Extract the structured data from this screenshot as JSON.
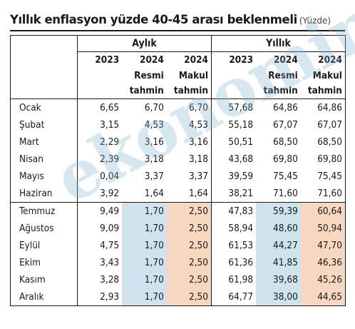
{
  "title": "Yıllık enflasyon yüzde 40-45 arası beklenmeli",
  "unit": "(Yüzde)",
  "watermark": "ekonomim",
  "chart_data": {
    "type": "table",
    "title": "Yıllık enflasyon yüzde 40-45 arası beklenmeli",
    "unit": "(Yüzde)",
    "groups": [
      "Aylık",
      "Yıllık"
    ],
    "columns": [
      {
        "group": "Aylık",
        "year": "2023",
        "line1": "",
        "line2": ""
      },
      {
        "group": "Aylık",
        "year": "2024",
        "line1": "Resmi",
        "line2": "tahmin"
      },
      {
        "group": "Aylık",
        "year": "2024",
        "line1": "Makul",
        "line2": "tahmin"
      },
      {
        "group": "Yıllık",
        "year": "2023",
        "line1": "",
        "line2": ""
      },
      {
        "group": "Yıllık",
        "year": "2024",
        "line1": "Resmi",
        "line2": "tahmin"
      },
      {
        "group": "Yıllık",
        "year": "2024",
        "line1": "Makul",
        "line2": "tahmin"
      }
    ],
    "rows": [
      {
        "month": "Ocak",
        "values": [
          "6,65",
          "6,70",
          "6,70",
          "57,68",
          "64,86",
          "64,86"
        ]
      },
      {
        "month": "Şubat",
        "values": [
          "3,15",
          "4,53",
          "4,53",
          "55,18",
          "67,07",
          "67,07"
        ]
      },
      {
        "month": "Mart",
        "values": [
          "2,29",
          "3,16",
          "3,16",
          "50,51",
          "68,50",
          "68,50"
        ]
      },
      {
        "month": "Nisan",
        "values": [
          "2,39",
          "3,18",
          "3,18",
          "43,68",
          "69,80",
          "69,80"
        ]
      },
      {
        "month": "Mayıs",
        "values": [
          "0,04",
          "3,37",
          "3,37",
          "39,59",
          "75,45",
          "75,45"
        ]
      },
      {
        "month": "Haziran",
        "values": [
          "3,92",
          "1,64",
          "1,64",
          "38,21",
          "71,60",
          "71,60"
        ]
      },
      {
        "month": "Temmuz",
        "values": [
          "9,49",
          "1,70",
          "2,50",
          "47,83",
          "59,39",
          "60,64"
        ]
      },
      {
        "month": "Ağustos",
        "values": [
          "9,09",
          "1,70",
          "2,50",
          "58,94",
          "48,60",
          "50,94"
        ]
      },
      {
        "month": "Eylül",
        "values": [
          "4,75",
          "1,70",
          "2,50",
          "61,53",
          "44,27",
          "47,70"
        ]
      },
      {
        "month": "Ekim",
        "values": [
          "3,43",
          "1,70",
          "2,50",
          "61,36",
          "41,85",
          "46,36"
        ]
      },
      {
        "month": "Kasım",
        "values": [
          "3,28",
          "1,70",
          "2,50",
          "61,98",
          "39,68",
          "45,26"
        ]
      },
      {
        "month": "Aralık",
        "values": [
          "2,93",
          "1,70",
          "2,50",
          "64,77",
          "38,00",
          "44,65"
        ]
      }
    ],
    "forecast_start_row": 6,
    "highlight_colors": {
      "resmi_tahmin": "#cfe3ef",
      "makul_tahmin": "#f7d7bf"
    }
  }
}
